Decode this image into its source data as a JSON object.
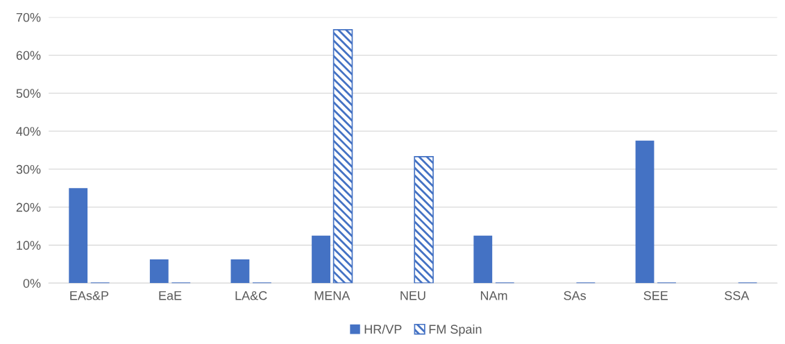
{
  "chart_data": {
    "type": "bar",
    "categories": [
      "EAs&P",
      "EaE",
      "LA&C",
      "MENA",
      "NEU",
      "NAm",
      "SAs",
      "SEE",
      "SSA"
    ],
    "series": [
      {
        "name": "HR/VP",
        "color": "#4472c4",
        "values": [
          25,
          6.25,
          6.25,
          12.5,
          0,
          12.5,
          0,
          37.5,
          0
        ]
      },
      {
        "name": "FM Spain",
        "color": "#4472c4",
        "values": [
          0,
          0,
          0,
          66.7,
          33.3,
          0,
          0,
          0,
          0
        ]
      }
    ],
    "ylim": [
      0,
      70
    ],
    "yticks": [
      {
        "value": 0,
        "label": "0%"
      },
      {
        "value": 10,
        "label": "10%"
      },
      {
        "value": 20,
        "label": "20%"
      },
      {
        "value": 30,
        "label": "30%"
      },
      {
        "value": 40,
        "label": "40%"
      },
      {
        "value": 50,
        "label": "50%"
      },
      {
        "value": 60,
        "label": "60%"
      },
      {
        "value": 70,
        "label": "70%"
      }
    ],
    "grid": "y",
    "legend": "bottom"
  }
}
